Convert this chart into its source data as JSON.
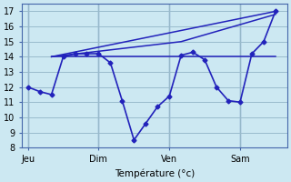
{
  "background_color": "#cce8f2",
  "grid_color": "#99bbcc",
  "line_color": "#2222bb",
  "xlabel": "Température (°c)",
  "x_ticks_labels": [
    "Jeu",
    "Dim",
    "Ven",
    "Sam"
  ],
  "x_ticks_pos": [
    0,
    6,
    12,
    18
  ],
  "ylim": [
    8,
    17.5
  ],
  "yticks": [
    8,
    9,
    10,
    11,
    12,
    13,
    14,
    15,
    16,
    17
  ],
  "xlim": [
    -0.5,
    22.0
  ],
  "vlines_x": [
    0,
    6,
    12,
    18
  ],
  "main_series": {
    "x": [
      0,
      1,
      2,
      3,
      4,
      5,
      6,
      7,
      8,
      9,
      10,
      11,
      12,
      13,
      14,
      15,
      16,
      17,
      18,
      19,
      20,
      21
    ],
    "y": [
      12,
      11.7,
      11.5,
      14.0,
      14.2,
      14.2,
      14.2,
      13.6,
      11.1,
      8.5,
      9.6,
      10.7,
      11.4,
      14.1,
      14.3,
      13.8,
      12.0,
      11.1,
      11.0,
      14.2,
      15.0,
      17.0
    ]
  },
  "trend_line1": {
    "x": [
      2,
      21
    ],
    "y": [
      14.0,
      17.0
    ],
    "ls": "-",
    "lw": 1.1
  },
  "trend_line2": {
    "x": [
      2,
      13,
      21
    ],
    "y": [
      14.0,
      15.0,
      16.8
    ],
    "ls": "-",
    "lw": 1.1
  },
  "trend_line3": {
    "x": [
      2,
      21
    ],
    "y": [
      14.0,
      14.0
    ],
    "ls": "-",
    "lw": 1.1
  }
}
